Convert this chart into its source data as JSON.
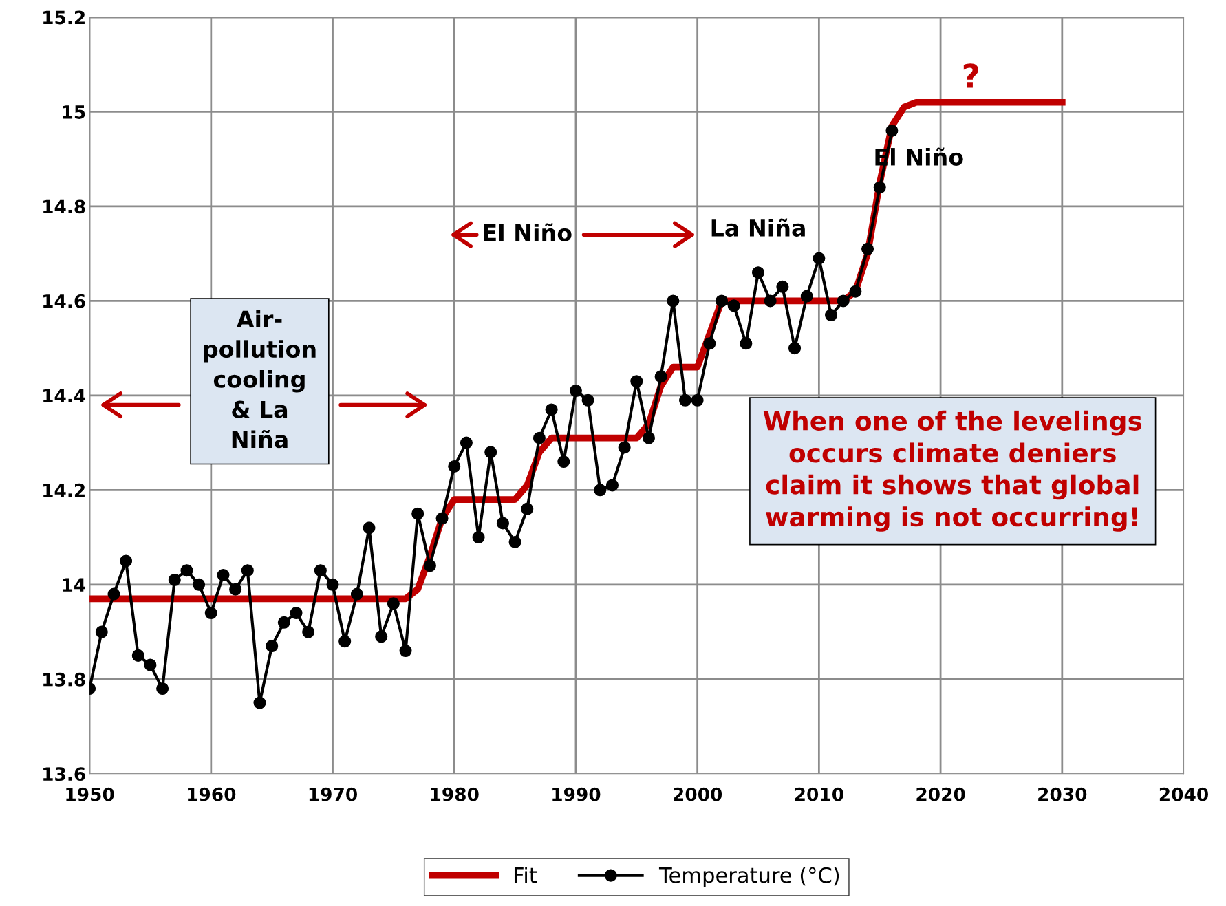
{
  "chart_data": {
    "type": "line",
    "xlim": [
      1950,
      2040
    ],
    "xticks": [
      1950,
      1960,
      1970,
      1980,
      1990,
      2000,
      2010,
      2020,
      2030,
      2040
    ],
    "ylim": [
      13.6,
      15.2
    ],
    "yticks": [
      13.6,
      13.8,
      14,
      14.2,
      14.4,
      14.6,
      14.8,
      15,
      15.2
    ],
    "grid": true,
    "legend": "bottom",
    "series": [
      {
        "name": "Fit",
        "color": "#c00000",
        "marker": "none",
        "x": [
          1950,
          1976,
          1977,
          1978,
          1979,
          1980,
          1985,
          1986,
          1987,
          1988,
          1995,
          1996,
          1997,
          1998,
          2000,
          2001,
          2002,
          2012,
          2013,
          2014,
          2015,
          2016,
          2017,
          2018,
          2030
        ],
        "values": [
          13.97,
          13.97,
          13.99,
          14.06,
          14.14,
          14.18,
          14.18,
          14.21,
          14.28,
          14.31,
          14.31,
          14.34,
          14.42,
          14.46,
          14.46,
          14.53,
          14.6,
          14.6,
          14.62,
          14.7,
          14.85,
          14.97,
          15.01,
          15.02,
          15.02
        ]
      },
      {
        "name": "Temperature (°C)",
        "color": "#000000",
        "marker": "circle",
        "x": [
          1950,
          1951,
          1952,
          1953,
          1954,
          1955,
          1956,
          1957,
          1958,
          1959,
          1960,
          1961,
          1962,
          1963,
          1964,
          1965,
          1966,
          1967,
          1968,
          1969,
          1970,
          1971,
          1972,
          1973,
          1974,
          1975,
          1976,
          1977,
          1978,
          1979,
          1980,
          1981,
          1982,
          1983,
          1984,
          1985,
          1986,
          1987,
          1988,
          1989,
          1990,
          1991,
          1992,
          1993,
          1994,
          1995,
          1996,
          1997,
          1998,
          1999,
          2000,
          2001,
          2002,
          2003,
          2004,
          2005,
          2006,
          2007,
          2008,
          2009,
          2010,
          2011,
          2012,
          2013,
          2014,
          2015,
          2016
        ],
        "values": [
          13.78,
          13.9,
          13.98,
          14.05,
          13.85,
          13.83,
          13.78,
          14.01,
          14.03,
          14.0,
          13.94,
          14.02,
          13.99,
          14.03,
          13.75,
          13.87,
          13.92,
          13.94,
          13.9,
          14.03,
          14.0,
          13.88,
          13.98,
          14.12,
          13.89,
          13.96,
          13.86,
          14.15,
          14.04,
          14.14,
          14.25,
          14.3,
          14.1,
          14.28,
          14.13,
          14.09,
          14.16,
          14.31,
          14.37,
          14.26,
          14.41,
          14.39,
          14.2,
          14.21,
          14.29,
          14.43,
          14.31,
          14.44,
          14.6,
          14.39,
          14.39,
          14.51,
          14.6,
          14.59,
          14.51,
          14.66,
          14.6,
          14.63,
          14.5,
          14.61,
          14.69,
          14.57,
          14.6,
          14.62,
          14.71,
          14.84,
          14.96
        ]
      }
    ],
    "annotations": [
      "Air-\npollution\ncooling\n& La\nNiña",
      "El Niño",
      "La Niña",
      "El Niño",
      "?",
      "When one of the levelings\noccurs climate deniers\nclaim it shows that global\nwarming is not occurring!"
    ]
  }
}
